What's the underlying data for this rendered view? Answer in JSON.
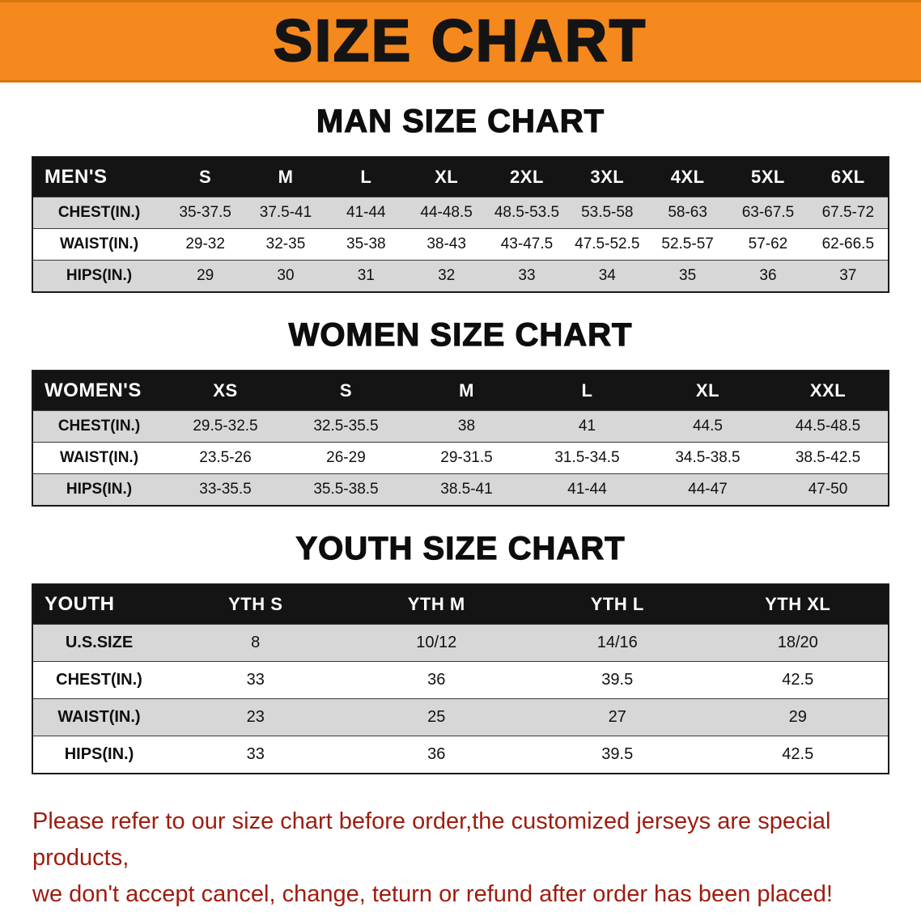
{
  "banner": {
    "title": "SIZE CHART",
    "bg_color": "#f5891d",
    "text_color": "#141414"
  },
  "sections": [
    {
      "heading": "MAN SIZE CHART",
      "table": {
        "header": [
          "MEN'S",
          "S",
          "M",
          "L",
          "XL",
          "2XL",
          "3XL",
          "4XL",
          "5XL",
          "6XL"
        ],
        "rows": [
          [
            "CHEST(IN.)",
            "35-37.5",
            "37.5-41",
            "41-44",
            "44-48.5",
            "48.5-53.5",
            "53.5-58",
            "58-63",
            "63-67.5",
            "67.5-72"
          ],
          [
            "WAIST(IN.)",
            "29-32",
            "32-35",
            "35-38",
            "38-43",
            "43-47.5",
            "47.5-52.5",
            "52.5-57",
            "57-62",
            "62-66.5"
          ],
          [
            "HIPS(IN.)",
            "29",
            "30",
            "31",
            "32",
            "33",
            "34",
            "35",
            "36",
            "37"
          ]
        ]
      }
    },
    {
      "heading": "WOMEN SIZE CHART",
      "table": {
        "header": [
          "WOMEN'S",
          "XS",
          "S",
          "M",
          "L",
          "XL",
          "XXL"
        ],
        "rows": [
          [
            "CHEST(IN.)",
            "29.5-32.5",
            "32.5-35.5",
            "38",
            "41",
            "44.5",
            "44.5-48.5"
          ],
          [
            "WAIST(IN.)",
            "23.5-26",
            "26-29",
            "29-31.5",
            "31.5-34.5",
            "34.5-38.5",
            "38.5-42.5"
          ],
          [
            "HIPS(IN.)",
            "33-35.5",
            "35.5-38.5",
            "38.5-41",
            "41-44",
            "44-47",
            "47-50"
          ]
        ]
      }
    },
    {
      "heading": "YOUTH SIZE CHART",
      "table": {
        "header": [
          "YOUTH",
          "YTH S",
          "YTH M",
          "YTH L",
          "YTH XL"
        ],
        "rows": [
          [
            "U.S.SIZE",
            "8",
            "10/12",
            "14/16",
            "18/20"
          ],
          [
            "CHEST(IN.)",
            "33",
            "36",
            "39.5",
            "42.5"
          ],
          [
            "WAIST(IN.)",
            "23",
            "25",
            "27",
            "29"
          ],
          [
            "HIPS(IN.)",
            "33",
            "36",
            "39.5",
            "42.5"
          ]
        ]
      }
    }
  ],
  "footer": {
    "line1": "Please refer to our size chart before order,the customized jerseys are special products,",
    "line2": "we don't accept cancel, change, teturn or refund after order has been placed!",
    "text_color": "#9e1c0e"
  }
}
